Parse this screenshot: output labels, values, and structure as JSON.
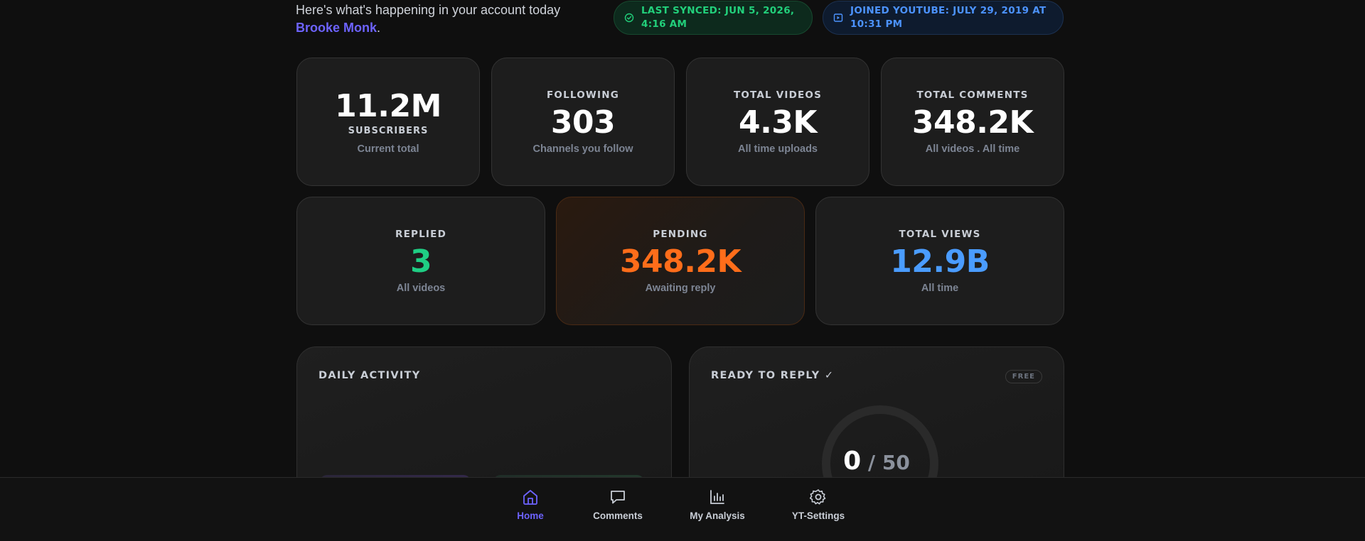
{
  "header": {
    "intro_text": "Here's what's happening in your account today",
    "user_name": "Brooke Monk",
    "punct": ".",
    "sync_badge": "LAST SYNCED: JUN 5, 2026, 4:16 AM",
    "joined_badge": "JOINED YOUTUBE: JULY 29, 2019 AT 10:31 PM"
  },
  "stats": {
    "subscribers": {
      "value": "11.2M",
      "label": "SUBSCRIBERS",
      "sub": "Current total"
    },
    "following": {
      "label": "FOLLOWING",
      "value": "303",
      "sub": "Channels you follow"
    },
    "total_videos": {
      "label": "TOTAL VIDEOS",
      "value": "4.3K",
      "sub": "All time uploads"
    },
    "total_comments": {
      "label": "TOTAL COMMENTS",
      "value": "348.2K",
      "sub": "All videos . All time"
    },
    "replied": {
      "label": "REPLIED",
      "value": "3",
      "sub": "All videos"
    },
    "pending": {
      "label": "PENDING",
      "value": "348.2K",
      "sub": "Awaiting reply"
    },
    "total_views": {
      "label": "TOTAL VIEWS",
      "value": "12.9B",
      "sub": "All time"
    }
  },
  "daily_activity": {
    "title": "DAILY ACTIVITY"
  },
  "ready_to_reply": {
    "title": "READY TO REPLY ✓",
    "badge": "FREE",
    "current": "0",
    "separator": " / ",
    "max": "50"
  },
  "nav": {
    "items": [
      {
        "label": "Home",
        "icon": "home-icon",
        "active": true
      },
      {
        "label": "Comments",
        "icon": "comment-icon",
        "active": false
      },
      {
        "label": "My Analysis",
        "icon": "bar-chart-icon",
        "active": false
      },
      {
        "label": "YT-Settings",
        "icon": "gear-icon",
        "active": false
      }
    ]
  },
  "colors": {
    "accent": "#6d63ff",
    "green": "#1fce84",
    "orange": "#ff6d1a",
    "blue": "#4a9cff",
    "background": "#0f0f0f"
  }
}
